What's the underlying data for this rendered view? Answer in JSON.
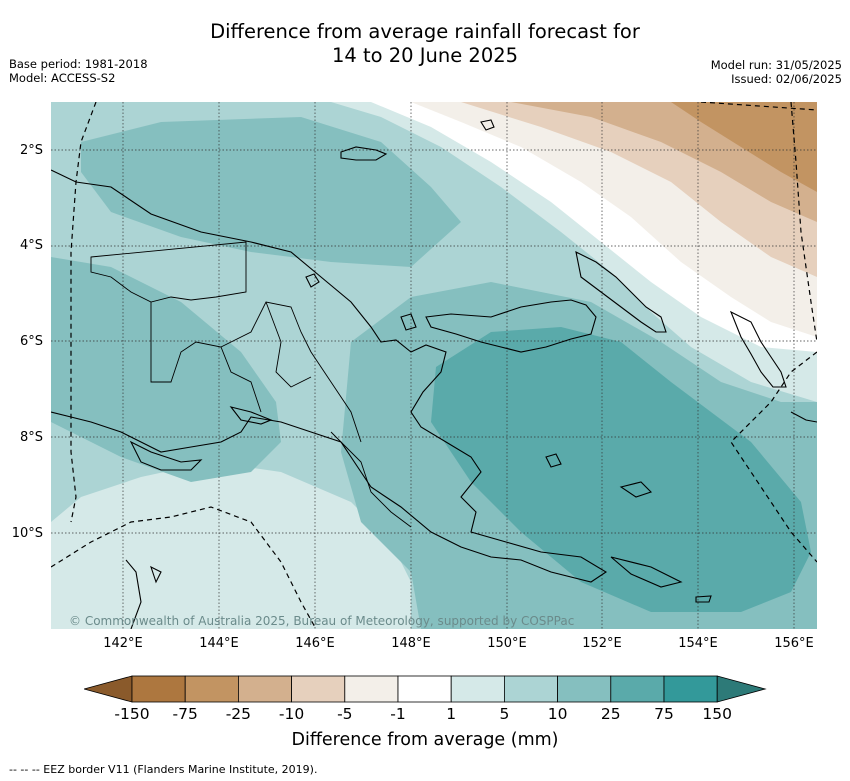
{
  "title_line1": "Difference from average rainfall forecast for",
  "title_line2": "14 to 20 June 2025",
  "meta_left": {
    "line1": "Base period: 1981-2018",
    "line2": "Model: ACCESS-S2"
  },
  "meta_right": {
    "line1": "Model run: 31/05/2025",
    "line2": "Issued: 02/06/2025"
  },
  "map": {
    "lat_ticks": [
      "2°S",
      "4°S",
      "6°S",
      "8°S",
      "10°S"
    ],
    "lon_ticks": [
      "142°E",
      "144°E",
      "146°E",
      "148°E",
      "150°E",
      "152°E",
      "154°E",
      "156°E"
    ],
    "copyright": "© Commonwealth of Australia 2025, Bureau of Meteorology, supported by COSPPac"
  },
  "colorbar": {
    "labels": [
      "-150",
      "-75",
      "-25",
      "-10",
      "-5",
      "-1",
      "1",
      "5",
      "10",
      "25",
      "75",
      "150"
    ],
    "colors": [
      "#8a5a2b",
      "#ad773f",
      "#c29462",
      "#d3b08e",
      "#e6d0bd",
      "#f3efe9",
      "#ffffff",
      "#d5e9e8",
      "#acd4d4",
      "#85bfbf",
      "#5aaaaa",
      "#33999a",
      "#2d7a78"
    ],
    "title": "Difference from average (mm)"
  },
  "footnote": "-- -- -- EEZ border V11 (Flanders Marine Institute, 2019)."
}
